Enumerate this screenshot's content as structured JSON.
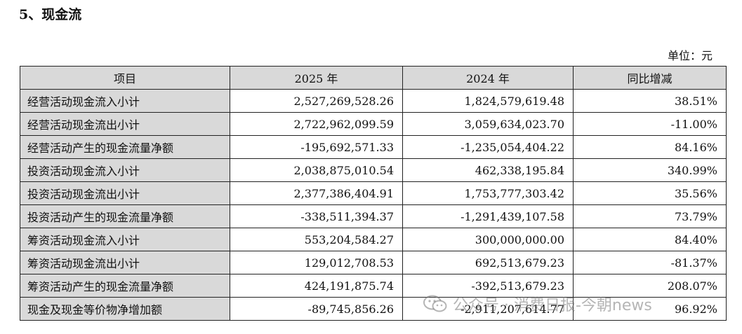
{
  "heading": "5、现金流",
  "unit": "单位：元",
  "table": {
    "headers": [
      "项目",
      "2025 年",
      "2024 年",
      "同比增减"
    ],
    "rows": [
      {
        "item": "经营活动现金流入小计",
        "y2025": "2,527,269,528.26",
        "y2024": "1,824,579,619.48",
        "change": "38.51%"
      },
      {
        "item": "经营活动现金流出小计",
        "y2025": "2,722,962,099.59",
        "y2024": "3,059,634,023.70",
        "change": "-11.00%"
      },
      {
        "item": "经营活动产生的现金流量净额",
        "y2025": "-195,692,571.33",
        "y2024": "-1,235,054,404.22",
        "change": "84.16%"
      },
      {
        "item": "投资活动现金流入小计",
        "y2025": "2,038,875,010.54",
        "y2024": "462,338,195.84",
        "change": "340.99%"
      },
      {
        "item": "投资活动现金流出小计",
        "y2025": "2,377,386,404.91",
        "y2024": "1,753,777,303.42",
        "change": "35.56%"
      },
      {
        "item": "投资活动产生的现金流量净额",
        "y2025": "-338,511,394.37",
        "y2024": "-1,291,439,107.58",
        "change": "73.79%"
      },
      {
        "item": "筹资活动现金流入小计",
        "y2025": "553,204,584.27",
        "y2024": "300,000,000.00",
        "change": "84.40%"
      },
      {
        "item": "筹资活动现金流出小计",
        "y2025": "129,012,708.53",
        "y2024": "692,513,679.23",
        "change": "-81.37%"
      },
      {
        "item": "筹资活动产生的现金流量净额",
        "y2025": "424,191,875.74",
        "y2024": "-392,513,679.23",
        "change": "208.07%"
      },
      {
        "item": "现金及现金等价物净增加额",
        "y2025": "-89,745,856.26",
        "y2024": "-2,911,207,614.77",
        "change": "96.92%"
      }
    ]
  },
  "watermark": {
    "text": "公众号 · 消费日报-今朝news",
    "icon": "wechat-icon"
  }
}
